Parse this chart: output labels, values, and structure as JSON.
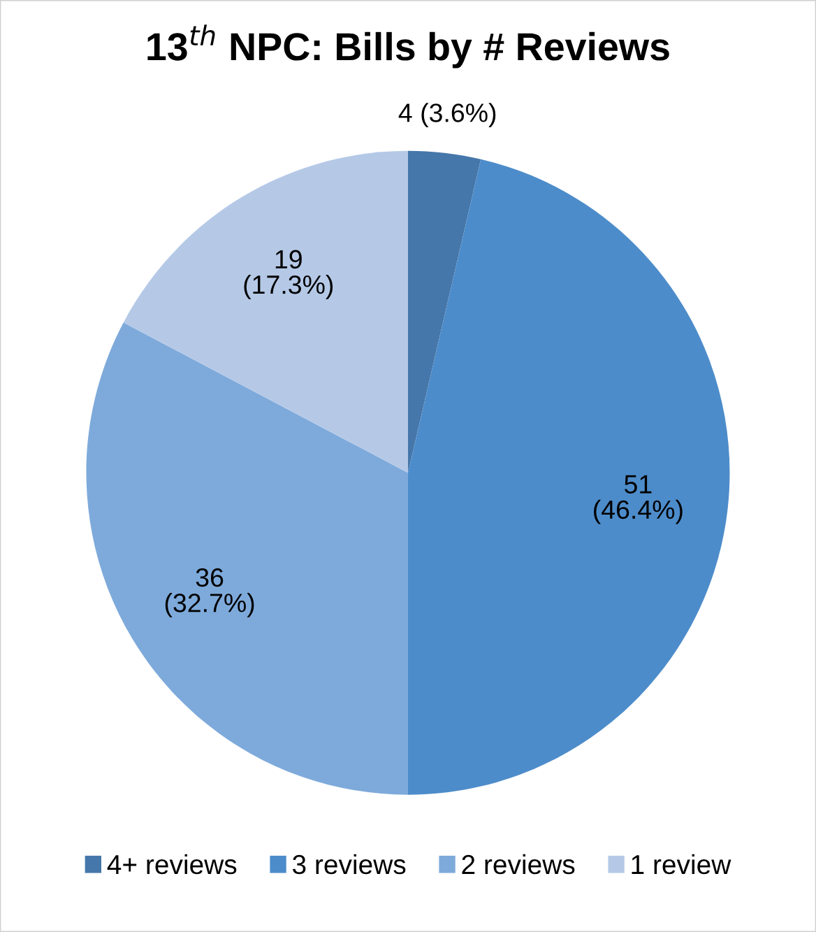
{
  "chart_data": {
    "type": "pie",
    "title": "13$^{th}$ NPC: Bills by # Reviews",
    "categories": [
      "4+ reviews",
      "3 reviews",
      "2 reviews",
      "1 review"
    ],
    "values": [
      4,
      51,
      36,
      19
    ],
    "colors": [
      "#4677aa",
      "#4d8cca",
      "#7eaadb",
      "#b5c9e7"
    ],
    "value_labels": [
      "4 (3.6%)",
      "51\n(46.4%)",
      "36\n(32.7%)",
      "19\n(17.3%)"
    ],
    "legend": "bottom"
  }
}
